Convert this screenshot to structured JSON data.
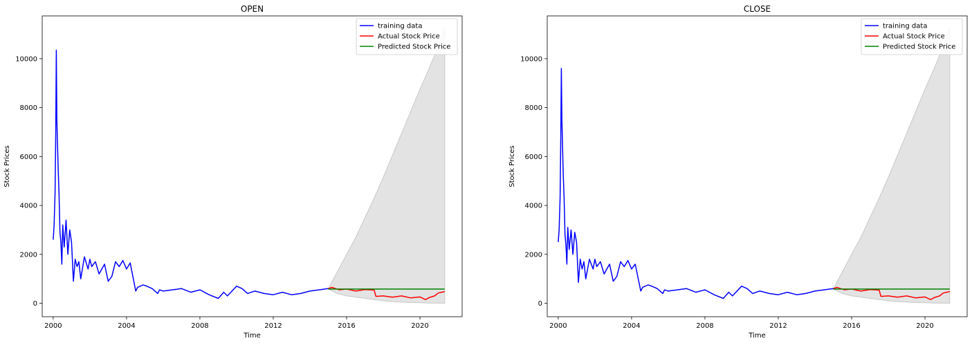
{
  "chart_data": [
    {
      "type": "line",
      "title": "OPEN",
      "xlabel": "Time",
      "ylabel": "Stock Prices",
      "xlim": [
        1999.4,
        2022.3
      ],
      "ylim": [
        -550,
        11750
      ],
      "xticks": [
        2000,
        2004,
        2008,
        2012,
        2016,
        2020
      ],
      "xtick_labels": [
        "2000",
        "2004",
        "2008",
        "2012",
        "2016",
        "2020"
      ],
      "yticks": [
        0,
        2000,
        4000,
        6000,
        8000,
        10000
      ],
      "ytick_labels": [
        "0",
        "2000",
        "4000",
        "6000",
        "8000",
        "10000"
      ],
      "legend_position": "top-right",
      "colors": {
        "training": "#0000ff",
        "actual": "#ff0000",
        "predicted": "#008000",
        "band": "#e3e3e3",
        "band_edge": "#c8c8c8"
      },
      "series": [
        {
          "name": "training data",
          "x": [
            2000.0,
            2000.05,
            2000.1,
            2000.14,
            2000.17,
            2000.2,
            2000.23,
            2000.27,
            2000.32,
            2000.37,
            2000.42,
            2000.47,
            2000.52,
            2000.6,
            2000.7,
            2000.8,
            2000.9,
            2001.0,
            2001.1,
            2001.2,
            2001.3,
            2001.4,
            2001.5,
            2001.7,
            2001.9,
            2002.0,
            2002.1,
            2002.3,
            2002.5,
            2002.8,
            2003.0,
            2003.2,
            2003.4,
            2003.6,
            2003.8,
            2004.0,
            2004.2,
            2004.5,
            2004.6,
            2004.9,
            2005.1,
            2005.4,
            2005.7,
            2005.8,
            2006.0,
            2006.5,
            2007.0,
            2007.5,
            2008.0,
            2008.5,
            2009.0,
            2009.3,
            2009.5,
            2010.0,
            2010.3,
            2010.6,
            2010.8,
            2011.0,
            2011.5,
            2012.0,
            2012.5,
            2013.0,
            2013.5,
            2014.0,
            2014.5,
            2015.0
          ],
          "y": [
            2600,
            3200,
            4500,
            7000,
            10350,
            7500,
            6600,
            5500,
            4400,
            2900,
            2500,
            1600,
            3200,
            2300,
            3400,
            2000,
            3000,
            2500,
            900,
            1800,
            1500,
            1700,
            1000,
            1900,
            1400,
            1800,
            1500,
            1700,
            1200,
            1600,
            900,
            1100,
            1700,
            1500,
            1750,
            1400,
            1650,
            500,
            650,
            750,
            700,
            600,
            400,
            550,
            500,
            550,
            600,
            450,
            550,
            350,
            200,
            450,
            300,
            700,
            600,
            400,
            450,
            500,
            400,
            350,
            450,
            350,
            400,
            500,
            550,
            600
          ]
        },
        {
          "name": "Actual Stock Price",
          "x": [
            2015.0,
            2015.2,
            2015.6,
            2016.0,
            2016.5,
            2017.0,
            2017.5,
            2017.6,
            2018.0,
            2018.5,
            2019.0,
            2019.5,
            2020.0,
            2020.3,
            2020.5,
            2020.8,
            2021.0,
            2021.35
          ],
          "y": [
            600,
            650,
            550,
            580,
            500,
            560,
            540,
            280,
            300,
            250,
            300,
            220,
            260,
            150,
            230,
            300,
            420,
            480
          ]
        },
        {
          "name": "Predicted Stock Price",
          "x": [
            2015.0,
            2021.35
          ],
          "y": [
            580,
            580
          ]
        }
      ],
      "confidence_band": {
        "x": [
          2015.0,
          2015.5,
          2016.0,
          2016.5,
          2017.0,
          2017.5,
          2018.0,
          2018.5,
          2019.0,
          2019.5,
          2020.0,
          2020.5,
          2021.0,
          2021.35
        ],
        "upper": [
          580,
          1300,
          2000,
          2700,
          3500,
          4300,
          5150,
          6050,
          6950,
          7850,
          8750,
          9600,
          10500,
          11300
        ],
        "lower": [
          580,
          400,
          300,
          250,
          200,
          150,
          100,
          70,
          50,
          30,
          20,
          10,
          5,
          0
        ]
      }
    },
    {
      "type": "line",
      "title": "CLOSE",
      "xlabel": "Time",
      "ylabel": "Stock Prices",
      "xlim": [
        1999.4,
        2022.3
      ],
      "ylim": [
        -550,
        11750
      ],
      "xticks": [
        2000,
        2004,
        2008,
        2012,
        2016,
        2020
      ],
      "xtick_labels": [
        "2000",
        "2004",
        "2008",
        "2012",
        "2016",
        "2020"
      ],
      "yticks": [
        0,
        2000,
        4000,
        6000,
        8000,
        10000
      ],
      "ytick_labels": [
        "0",
        "2000",
        "4000",
        "6000",
        "8000",
        "10000"
      ],
      "legend_position": "top-right",
      "colors": {
        "training": "#0000ff",
        "actual": "#ff0000",
        "predicted": "#008000",
        "band": "#e3e3e3",
        "band_edge": "#c8c8c8"
      },
      "series": [
        {
          "name": "training data",
          "x": [
            2000.0,
            2000.05,
            2000.1,
            2000.14,
            2000.17,
            2000.2,
            2000.23,
            2000.27,
            2000.32,
            2000.37,
            2000.42,
            2000.47,
            2000.52,
            2000.6,
            2000.7,
            2000.8,
            2000.9,
            2001.0,
            2001.1,
            2001.2,
            2001.3,
            2001.4,
            2001.5,
            2001.7,
            2001.9,
            2002.0,
            2002.1,
            2002.3,
            2002.5,
            2002.8,
            2003.0,
            2003.2,
            2003.4,
            2003.6,
            2003.8,
            2004.0,
            2004.2,
            2004.5,
            2004.6,
            2004.9,
            2005.1,
            2005.4,
            2005.7,
            2005.8,
            2006.0,
            2006.5,
            2007.0,
            2007.5,
            2008.0,
            2008.5,
            2009.0,
            2009.3,
            2009.5,
            2010.0,
            2010.3,
            2010.6,
            2010.8,
            2011.0,
            2011.5,
            2012.0,
            2012.5,
            2013.0,
            2013.5,
            2014.0,
            2014.5,
            2015.0
          ],
          "y": [
            2500,
            3000,
            4300,
            6800,
            9600,
            7500,
            6600,
            5300,
            4300,
            2800,
            2400,
            1600,
            3100,
            2200,
            3000,
            2000,
            2900,
            2500,
            850,
            1800,
            1400,
            1700,
            1000,
            1800,
            1400,
            1800,
            1500,
            1700,
            1200,
            1600,
            900,
            1100,
            1700,
            1500,
            1750,
            1400,
            1600,
            500,
            650,
            750,
            700,
            600,
            400,
            550,
            500,
            550,
            600,
            450,
            550,
            350,
            200,
            450,
            300,
            700,
            600,
            400,
            450,
            500,
            400,
            350,
            450,
            350,
            400,
            500,
            550,
            600
          ]
        },
        {
          "name": "Actual Stock Price",
          "x": [
            2015.0,
            2015.2,
            2015.6,
            2016.0,
            2016.5,
            2017.0,
            2017.5,
            2017.6,
            2018.0,
            2018.5,
            2019.0,
            2019.5,
            2020.0,
            2020.3,
            2020.5,
            2020.8,
            2021.0,
            2021.35
          ],
          "y": [
            600,
            650,
            550,
            580,
            500,
            560,
            540,
            280,
            300,
            250,
            300,
            220,
            260,
            150,
            230,
            300,
            420,
            480
          ]
        },
        {
          "name": "Predicted Stock Price",
          "x": [
            2015.0,
            2021.35
          ],
          "y": [
            580,
            580
          ]
        }
      ],
      "confidence_band": {
        "x": [
          2015.0,
          2015.5,
          2016.0,
          2016.5,
          2017.0,
          2017.5,
          2018.0,
          2018.5,
          2019.0,
          2019.5,
          2020.0,
          2020.5,
          2021.0,
          2021.35
        ],
        "upper": [
          580,
          1300,
          2000,
          2700,
          3500,
          4300,
          5150,
          6050,
          6950,
          7850,
          8750,
          9600,
          10500,
          11300
        ],
        "lower": [
          580,
          400,
          300,
          250,
          200,
          150,
          100,
          70,
          50,
          30,
          20,
          10,
          5,
          0
        ]
      }
    }
  ]
}
